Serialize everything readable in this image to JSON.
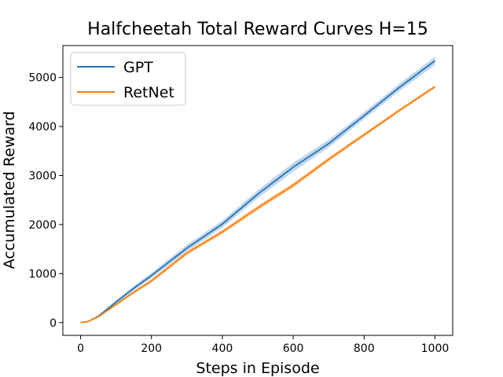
{
  "chart_data": {
    "type": "line",
    "title": "Halfcheetah Total Reward Curves H=15",
    "xlabel": "Steps in Episode",
    "ylabel": "Accumulated Reward",
    "xlim": [
      -50,
      1050
    ],
    "ylim": [
      -260,
      5650
    ],
    "xticks": [
      0,
      200,
      400,
      600,
      800,
      1000
    ],
    "yticks": [
      0,
      1000,
      2000,
      3000,
      4000,
      5000
    ],
    "xtick_labels": [
      "0",
      "200",
      "400",
      "600",
      "800",
      "1000"
    ],
    "ytick_labels": [
      "0",
      "1000",
      "2000",
      "3000",
      "4000",
      "5000"
    ],
    "grid": false,
    "legend_position": "top-left",
    "series": [
      {
        "name": "GPT",
        "color": "#1f77b4",
        "band_color": "#aec7e8",
        "x": [
          0,
          20,
          50,
          100,
          150,
          200,
          300,
          400,
          500,
          600,
          700,
          800,
          900,
          1000
        ],
        "y": [
          0,
          20,
          130,
          420,
          700,
          960,
          1520,
          2010,
          2620,
          3170,
          3650,
          4220,
          4800,
          5340
        ],
        "band": [
          0,
          5,
          15,
          35,
          45,
          55,
          65,
          70,
          80,
          90,
          80,
          70,
          75,
          85
        ]
      },
      {
        "name": "RetNet",
        "color": "#ff7f0e",
        "band_color": "#ffbb78",
        "x": [
          0,
          20,
          50,
          100,
          150,
          200,
          300,
          400,
          500,
          600,
          700,
          800,
          900,
          1000
        ],
        "y": [
          0,
          20,
          120,
          370,
          620,
          850,
          1420,
          1850,
          2340,
          2800,
          3330,
          3830,
          4330,
          4810
        ],
        "band": [
          0,
          5,
          12,
          25,
          30,
          35,
          40,
          40,
          45,
          45,
          40,
          35,
          30,
          30
        ]
      }
    ]
  }
}
